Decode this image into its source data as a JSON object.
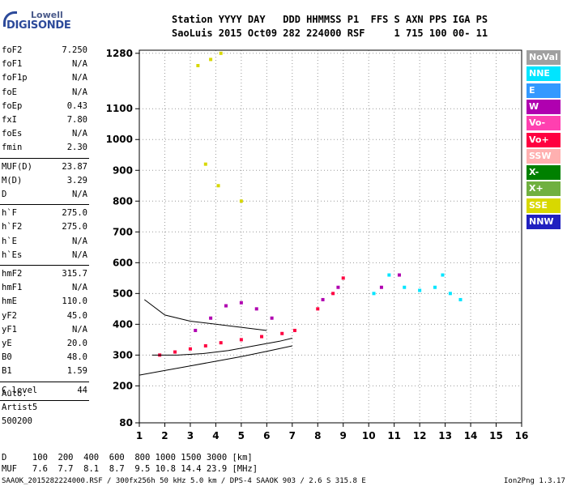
{
  "logo": {
    "top": "Lowell",
    "main": "DIGISONDE"
  },
  "header": {
    "line1": "Station YYYY DAY   DDD HHMMSS P1  FFS S AXN PPS IGA PS",
    "line2": "SaoLuis 2015 Oct09 282 224000 RSF     1 715 100 00- 11"
  },
  "params": [
    {
      "name": "foF2",
      "value": "7.250"
    },
    {
      "name": "foF1",
      "value": "N/A"
    },
    {
      "name": "foF1p",
      "value": "N/A"
    },
    {
      "name": "foE",
      "value": "N/A"
    },
    {
      "name": "foEp",
      "value": "0.43"
    },
    {
      "name": "fxI",
      "value": "7.80"
    },
    {
      "name": "foEs",
      "value": "N/A"
    },
    {
      "name": "fmin",
      "value": "2.30"
    },
    {
      "name": "MUF(D)",
      "value": "23.87"
    },
    {
      "name": "M(D)",
      "value": "3.29"
    },
    {
      "name": "D",
      "value": "N/A"
    },
    {
      "name": "h`F",
      "value": "275.0"
    },
    {
      "name": "h`F2",
      "value": "275.0"
    },
    {
      "name": "h`E",
      "value": "N/A"
    },
    {
      "name": "h`Es",
      "value": "N/A"
    },
    {
      "name": "hmF2",
      "value": "315.7"
    },
    {
      "name": "hmF1",
      "value": "N/A"
    },
    {
      "name": "hmE",
      "value": "110.0"
    },
    {
      "name": "yF2",
      "value": "45.0"
    },
    {
      "name": "yF1",
      "value": "N/A"
    },
    {
      "name": "yE",
      "value": "20.0"
    },
    {
      "name": "B0",
      "value": "48.0"
    },
    {
      "name": "B1",
      "value": "1.59"
    },
    {
      "name": "C-level",
      "value": "44"
    }
  ],
  "auto": {
    "line1": "Auto:",
    "line2": "Artist5",
    "line3": "500200"
  },
  "legend": [
    {
      "label": "NoVal",
      "color": "#a0a0a0"
    },
    {
      "label": "NNE",
      "color": "#00e5ff"
    },
    {
      "label": "E",
      "color": "#3399ff"
    },
    {
      "label": "W",
      "color": "#b000b0"
    },
    {
      "label": "Vo-",
      "color": "#ff40b0"
    },
    {
      "label": "Vo+",
      "color": "#ff0040"
    },
    {
      "label": "SSW",
      "color": "#ffb0b0"
    },
    {
      "label": "X-",
      "color": "#008000"
    },
    {
      "label": "X+",
      "color": "#70b040"
    },
    {
      "label": "SSE",
      "color": "#d8d800"
    },
    {
      "label": "NNW",
      "color": "#2020c0"
    }
  ],
  "footer": {
    "d_row": "D     100  200  400  600  800 1000 1500 3000 [km]",
    "muf_row": "MUF   7.6  7.7  8.1  8.7  9.5 10.8 14.4 23.9 [MHz]",
    "info": "SAAOK_2015282224000.RSF / 300fx256h 50 kHz 5.0 km / DPS-4 SAAOK 903 / 2.6 S 315.8 E",
    "version": "Ion2Png 1.3.17"
  },
  "chart_data": {
    "type": "scatter",
    "xlabel": "",
    "ylabel": "",
    "xlim": [
      1,
      16
    ],
    "ylim": [
      80,
      1290
    ],
    "xticks": [
      1,
      2,
      3,
      4,
      5,
      6,
      7,
      8,
      9,
      10,
      11,
      12,
      13,
      14,
      15,
      16
    ],
    "yticks": [
      80,
      200,
      300,
      400,
      500,
      600,
      700,
      800,
      900,
      1000,
      1100,
      1280
    ],
    "grid": true,
    "legend_position": "right",
    "series": [
      {
        "name": "Vo+",
        "color": "#ff0040",
        "points": [
          [
            1.8,
            300
          ],
          [
            2.4,
            310
          ],
          [
            3.0,
            320
          ],
          [
            3.6,
            330
          ],
          [
            4.2,
            340
          ],
          [
            5.0,
            350
          ],
          [
            5.8,
            360
          ],
          [
            6.6,
            370
          ],
          [
            7.1,
            380
          ],
          [
            8.0,
            450
          ],
          [
            8.6,
            500
          ],
          [
            9.0,
            550
          ]
        ]
      },
      {
        "name": "W",
        "color": "#b000b0",
        "points": [
          [
            3.2,
            380
          ],
          [
            3.8,
            420
          ],
          [
            4.4,
            460
          ],
          [
            5.0,
            470
          ],
          [
            5.6,
            450
          ],
          [
            6.2,
            420
          ],
          [
            8.2,
            480
          ],
          [
            8.8,
            520
          ],
          [
            10.5,
            520
          ],
          [
            11.2,
            560
          ]
        ]
      },
      {
        "name": "NNE",
        "color": "#00e5ff",
        "points": [
          [
            10.2,
            500
          ],
          [
            10.8,
            560
          ],
          [
            11.4,
            520
          ],
          [
            12.0,
            510
          ],
          [
            12.6,
            520
          ],
          [
            13.2,
            500
          ],
          [
            13.6,
            480
          ],
          [
            12.9,
            560
          ]
        ]
      },
      {
        "name": "SSE",
        "color": "#d8d800",
        "points": [
          [
            3.3,
            1240
          ],
          [
            3.8,
            1260
          ],
          [
            4.2,
            1280
          ],
          [
            3.6,
            920
          ],
          [
            4.1,
            850
          ],
          [
            5.0,
            800
          ]
        ]
      }
    ],
    "curves": [
      {
        "name": "",
        "points": [
          [
            1.0,
            235
          ],
          [
            2.0,
            250
          ],
          [
            3.0,
            265
          ],
          [
            4.0,
            280
          ],
          [
            5.0,
            295
          ],
          [
            6.0,
            312
          ],
          [
            7.0,
            330
          ]
        ]
      },
      {
        "name": "",
        "points": [
          [
            1.5,
            300
          ],
          [
            2.5,
            300
          ],
          [
            3.5,
            305
          ],
          [
            4.5,
            315
          ],
          [
            5.5,
            330
          ],
          [
            6.5,
            345
          ],
          [
            7.0,
            355
          ]
        ]
      },
      {
        "name": "",
        "points": [
          [
            1.2,
            480
          ],
          [
            2.0,
            430
          ],
          [
            3.0,
            410
          ],
          [
            4.0,
            400
          ],
          [
            5.0,
            390
          ],
          [
            6.0,
            380
          ]
        ]
      }
    ]
  }
}
